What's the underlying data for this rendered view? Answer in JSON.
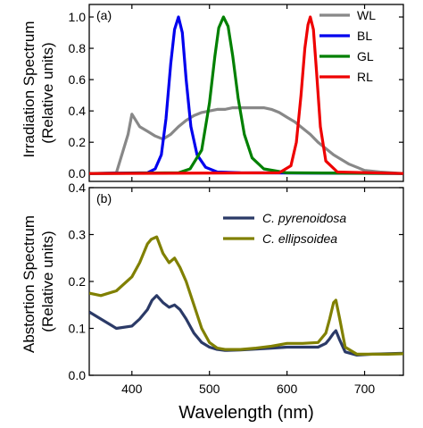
{
  "chart_data": [
    {
      "type": "line",
      "panel_label": "(a)",
      "ylabel": [
        "Irradiation Spectrum",
        "(Relative units)"
      ],
      "xlim": [
        345,
        750
      ],
      "ylim": [
        -0.05,
        1.08
      ],
      "yticks": [
        0.0,
        0.2,
        0.4,
        0.6,
        0.8,
        1.0
      ],
      "ytick_labels": [
        "0.0",
        "0.2",
        "0.4",
        "0.6",
        "0.8",
        "1.0"
      ],
      "legend_position": "top-right",
      "series": [
        {
          "name": "WL",
          "color": "#888888",
          "x": [
            345,
            380,
            395,
            400,
            410,
            420,
            430,
            440,
            450,
            460,
            470,
            480,
            490,
            500,
            510,
            520,
            530,
            540,
            550,
            560,
            570,
            580,
            590,
            600,
            610,
            620,
            630,
            640,
            650,
            660,
            670,
            680,
            690,
            700,
            720,
            750
          ],
          "y": [
            0,
            0.005,
            0.25,
            0.38,
            0.3,
            0.27,
            0.24,
            0.22,
            0.25,
            0.3,
            0.34,
            0.37,
            0.39,
            0.4,
            0.41,
            0.41,
            0.42,
            0.42,
            0.42,
            0.42,
            0.42,
            0.41,
            0.39,
            0.36,
            0.33,
            0.29,
            0.25,
            0.2,
            0.16,
            0.12,
            0.09,
            0.06,
            0.04,
            0.02,
            0.01,
            0
          ]
        },
        {
          "name": "BL",
          "color": "#0000ee",
          "x": [
            345,
            420,
            430,
            438,
            444,
            450,
            455,
            460,
            465,
            470,
            476,
            484,
            495,
            510,
            540,
            750
          ],
          "y": [
            0,
            0.005,
            0.03,
            0.12,
            0.35,
            0.7,
            0.92,
            1.0,
            0.9,
            0.6,
            0.3,
            0.12,
            0.04,
            0.01,
            0.005,
            0
          ]
        },
        {
          "name": "GL",
          "color": "#008000",
          "x": [
            345,
            460,
            475,
            490,
            500,
            507,
            512,
            518,
            524,
            530,
            537,
            545,
            555,
            570,
            600,
            750
          ],
          "y": [
            0,
            0.005,
            0.03,
            0.15,
            0.45,
            0.75,
            0.93,
            1.0,
            0.94,
            0.75,
            0.48,
            0.25,
            0.1,
            0.03,
            0.005,
            0
          ]
        },
        {
          "name": "RL",
          "color": "#ee0000",
          "x": [
            345,
            590,
            605,
            612,
            618,
            623,
            627,
            630,
            634,
            638,
            643,
            650,
            665,
            750
          ],
          "y": [
            0,
            0.005,
            0.05,
            0.2,
            0.5,
            0.8,
            0.95,
            1.0,
            0.92,
            0.65,
            0.3,
            0.08,
            0.01,
            0
          ]
        }
      ]
    },
    {
      "type": "line",
      "panel_label": "(b)",
      "ylabel": [
        "Abstortion Spectrum",
        "(Relative units)"
      ],
      "xlabel": "Wavelength (nm)",
      "xlim": [
        345,
        750
      ],
      "xticks": [
        400,
        500,
        600,
        700
      ],
      "xtick_labels": [
        "400",
        "500",
        "600",
        "700"
      ],
      "ylim": [
        0.0,
        0.4
      ],
      "yticks": [
        0.0,
        0.1,
        0.2,
        0.3,
        0.4
      ],
      "ytick_labels": [
        "0.0",
        "0.1",
        "0.2",
        "0.3",
        "0.4"
      ],
      "legend_position": "top-right",
      "series": [
        {
          "name": "C. pyrenoidosa",
          "color": "#2b3a67",
          "x": [
            345,
            360,
            380,
            400,
            410,
            420,
            426,
            432,
            440,
            448,
            455,
            462,
            470,
            480,
            490,
            500,
            510,
            520,
            540,
            560,
            580,
            600,
            620,
            640,
            650,
            655,
            660,
            663,
            668,
            675,
            690,
            710,
            730,
            750
          ],
          "y": [
            0.135,
            0.12,
            0.1,
            0.105,
            0.12,
            0.14,
            0.16,
            0.17,
            0.155,
            0.145,
            0.15,
            0.14,
            0.12,
            0.09,
            0.07,
            0.06,
            0.055,
            0.053,
            0.054,
            0.056,
            0.058,
            0.06,
            0.06,
            0.06,
            0.068,
            0.078,
            0.09,
            0.095,
            0.075,
            0.05,
            0.043,
            0.045,
            0.046,
            0.047
          ]
        },
        {
          "name": "C. ellipsoidea",
          "color": "#808000",
          "x": [
            345,
            360,
            380,
            400,
            410,
            420,
            425,
            432,
            440,
            448,
            455,
            462,
            470,
            480,
            490,
            500,
            510,
            520,
            540,
            560,
            580,
            600,
            620,
            640,
            650,
            655,
            660,
            663,
            668,
            675,
            690,
            710,
            730,
            750
          ],
          "y": [
            0.175,
            0.17,
            0.18,
            0.21,
            0.24,
            0.28,
            0.29,
            0.295,
            0.26,
            0.24,
            0.25,
            0.23,
            0.2,
            0.15,
            0.1,
            0.07,
            0.058,
            0.055,
            0.055,
            0.058,
            0.062,
            0.068,
            0.068,
            0.07,
            0.09,
            0.12,
            0.155,
            0.16,
            0.12,
            0.06,
            0.045,
            0.045,
            0.045,
            0.046
          ]
        }
      ]
    }
  ]
}
